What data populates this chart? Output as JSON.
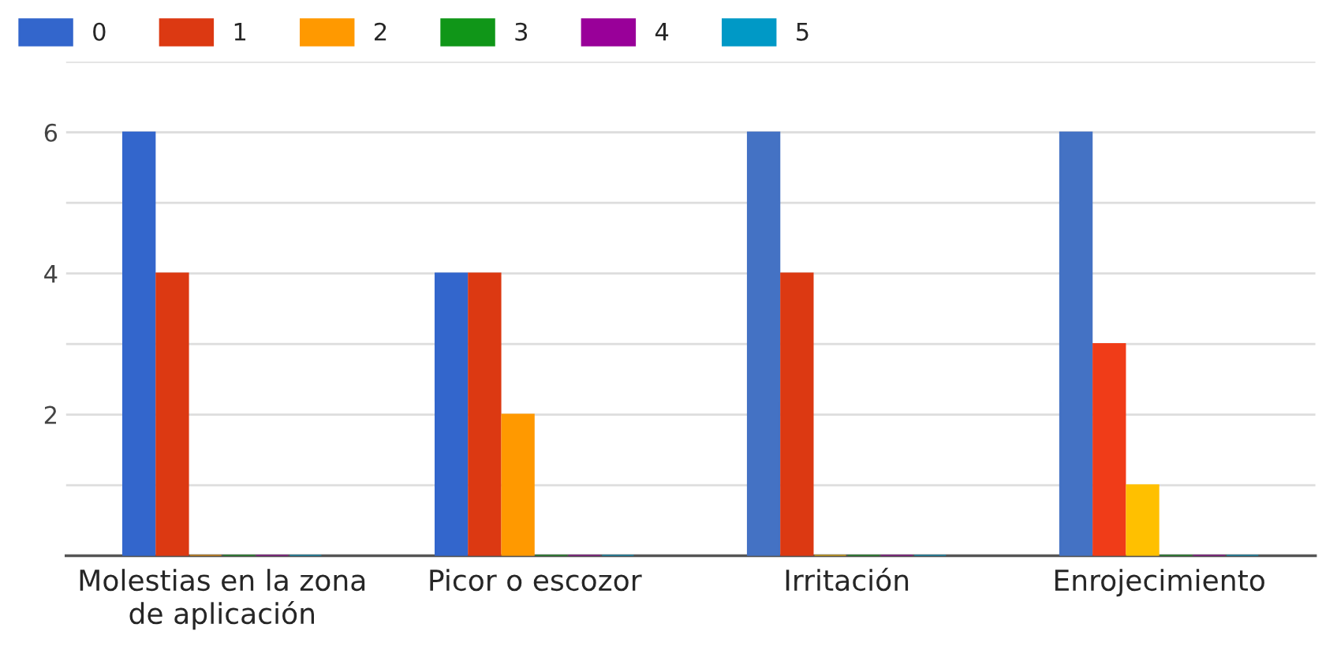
{
  "chart_data": {
    "type": "bar",
    "categories": [
      "Molestias en la zona\nde aplicación",
      "Picor o escozor",
      "Irritación",
      "Enrojecimiento"
    ],
    "series": [
      {
        "name": "0",
        "color": "#3366cc",
        "colors": [
          "#3366cc",
          "#3366cc",
          "#4472c4",
          "#4472c4"
        ],
        "values": [
          6,
          4,
          6,
          6
        ]
      },
      {
        "name": "1",
        "color": "#dc3912",
        "colors": [
          "#dc3912",
          "#dc3912",
          "#dc3912",
          "#f03c18"
        ],
        "values": [
          4,
          4,
          4,
          3
        ]
      },
      {
        "name": "2",
        "color": "#ff9900",
        "colors": [
          "#ff9900",
          "#ff9900",
          "#ffc000",
          "#ffc000"
        ],
        "values": [
          0,
          2,
          0,
          1
        ]
      },
      {
        "name": "3",
        "color": "#109618",
        "values": [
          0,
          0,
          0,
          0
        ]
      },
      {
        "name": "4",
        "color": "#990099",
        "values": [
          0,
          0,
          0,
          0
        ]
      },
      {
        "name": "5",
        "color": "#0099c6",
        "values": [
          0,
          0,
          0,
          0
        ]
      }
    ],
    "ylim": [
      0,
      7
    ],
    "yticks": [
      {
        "value": 0,
        "label": null
      },
      {
        "value": 1,
        "label": null
      },
      2,
      {
        "value": 3,
        "label": null
      },
      4,
      {
        "value": 5,
        "label": null
      },
      6,
      {
        "value": 7,
        "label": null
      }
    ],
    "grid": "y",
    "legend": "top left"
  }
}
